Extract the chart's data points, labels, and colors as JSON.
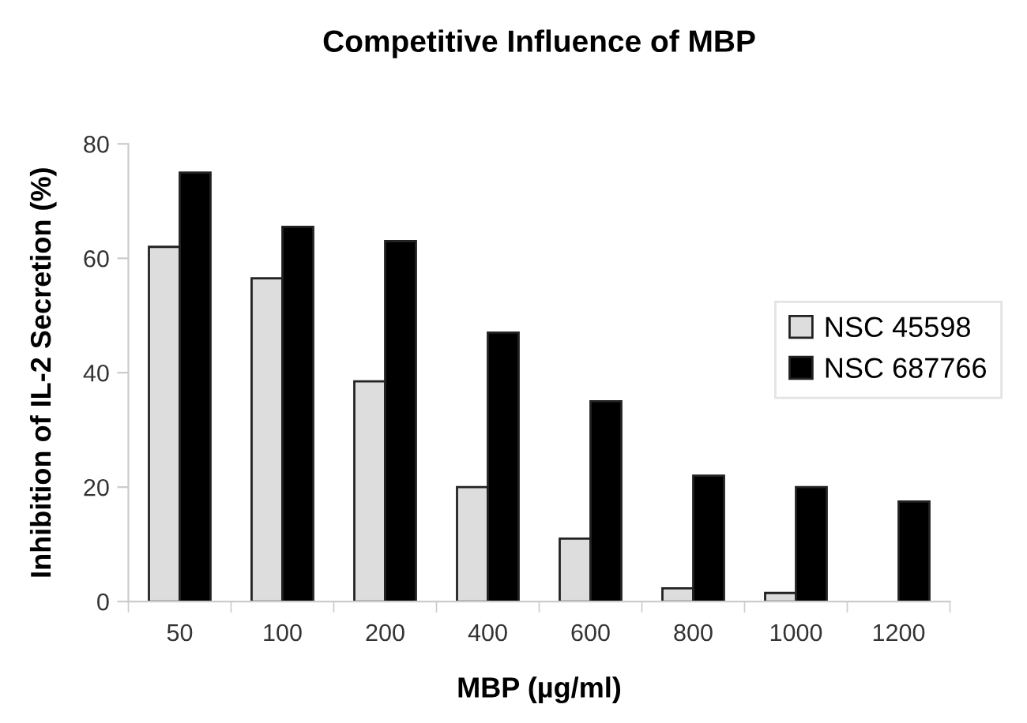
{
  "chart_data": {
    "type": "bar",
    "title": "Competitive Influence of MBP",
    "xlabel": "MBP (µg/ml)",
    "ylabel": "Inhibition of IL-2 Secretion (%)",
    "categories": [
      "50",
      "100",
      "200",
      "400",
      "600",
      "800",
      "1000",
      "1200"
    ],
    "series": [
      {
        "name": "NSC 45598",
        "color": "#dddddd",
        "values": [
          62,
          56.5,
          38.5,
          20,
          11,
          2.3,
          1.5,
          null
        ]
      },
      {
        "name": "NSC 687766",
        "color": "#000000",
        "values": [
          75,
          65.5,
          63,
          47,
          35,
          22,
          20,
          17.5
        ]
      }
    ],
    "ylim": [
      0,
      80
    ],
    "yticks": [
      0,
      20,
      40,
      60,
      80
    ],
    "grid": false,
    "legend": "right"
  }
}
